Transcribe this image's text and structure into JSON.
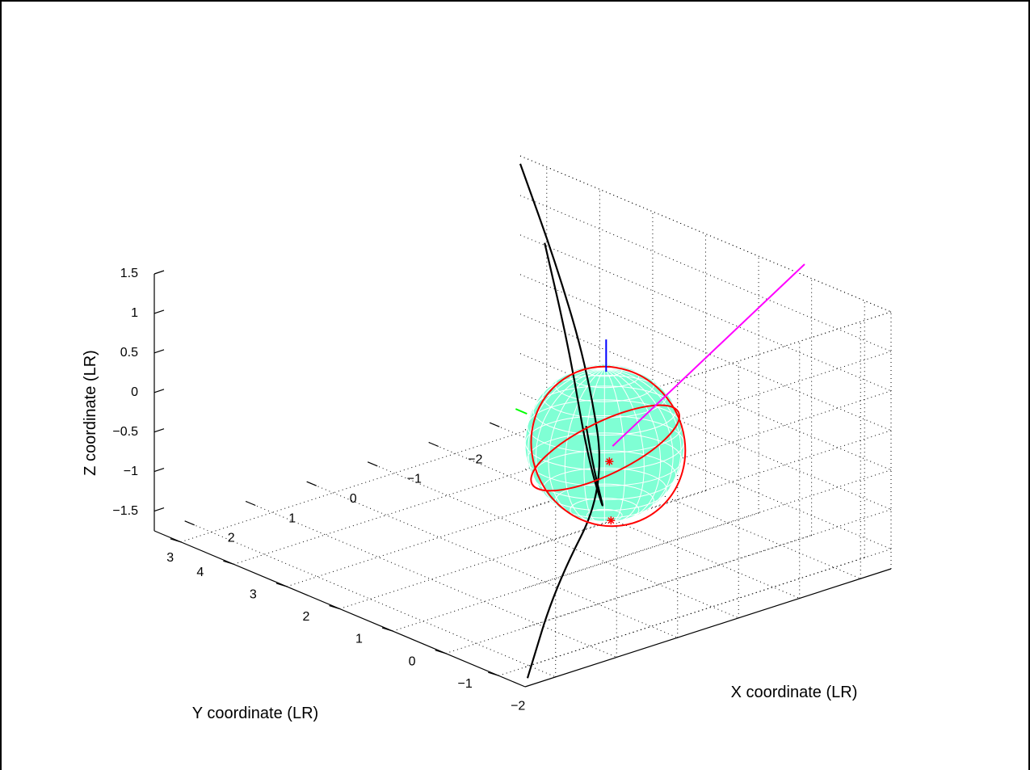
{
  "chart_data": {
    "type": "scatter",
    "view": "3d-perspective",
    "xlabel": "X coordinate (LR)",
    "ylabel": "Y coordinate (LR)",
    "zlabel": "Z coordinate (LR)",
    "xlim": [
      -2.5,
      4.5
    ],
    "ylim": [
      -2.5,
      3.5
    ],
    "zlim": [
      -1.75,
      1.5
    ],
    "x_ticks": [
      "−2",
      "−1",
      "0",
      "1",
      "2",
      "3",
      "4"
    ],
    "y_ticks": [
      "−2",
      "−1",
      "0",
      "1",
      "2",
      "3"
    ],
    "z_ticks": [
      "−1.5",
      "−1",
      "−0.5",
      "0",
      "0.5",
      "1",
      "1.5"
    ],
    "grid": true,
    "colors": {
      "sphere_fill": "#7fffd4",
      "sphere_grid": "#ffffff",
      "curve": "#000000",
      "ring": "#ff0000",
      "marker": "#ff0000",
      "pointer": "#ff00ff",
      "axis_up": "#0000ff",
      "axis_side": "#00ff00"
    },
    "series": [
      {
        "type": "sphere",
        "center": [
          0,
          0,
          -0.25
        ],
        "radius": 1
      },
      {
        "type": "curve",
        "points": [
          [
            -2.2,
            3.2,
            -1.8
          ],
          [
            -1.0,
            1.7,
            -1.35
          ],
          [
            0.0,
            0.0,
            -0.8
          ],
          [
            1.5,
            -1.0,
            0.0
          ],
          [
            3.0,
            -1.8,
            0.7
          ],
          [
            4.5,
            -2.5,
            1.4
          ]
        ]
      },
      {
        "type": "curve",
        "points": [
          [
            -2.5,
            2.5,
            1.3
          ],
          [
            -1.5,
            1.5,
            0.2
          ],
          [
            0.0,
            0.0,
            -1.2
          ],
          [
            1.5,
            -1.0,
            -1.1
          ],
          [
            3.0,
            -2.0,
            -0.4
          ],
          [
            4.5,
            -2.9,
            0.3
          ]
        ]
      },
      {
        "type": "ring",
        "orientation": "vertical"
      },
      {
        "type": "ring",
        "orientation": "horizontal"
      },
      {
        "type": "marker",
        "symbol": "*",
        "point": [
          0.2,
          -0.3,
          -0.65
        ]
      },
      {
        "type": "marker",
        "symbol": "*",
        "point": [
          0.0,
          0.0,
          -1.25
        ]
      }
    ]
  }
}
